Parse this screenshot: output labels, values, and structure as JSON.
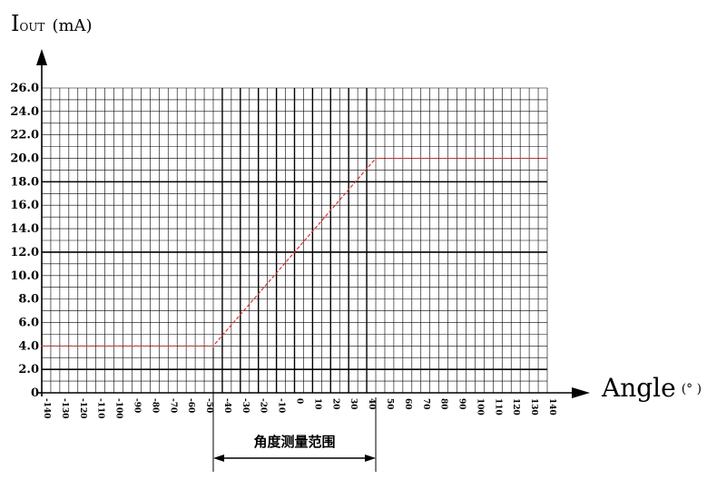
{
  "chart_data": {
    "type": "line",
    "y_title": {
      "main": "I",
      "sub": "OUT",
      "unit": "(mA)"
    },
    "x_title": {
      "main": "Angle",
      "unit": "(° )"
    },
    "x_ticks": [
      "-140",
      "-130",
      "-120",
      "-110",
      "-100",
      "-90",
      "-80",
      "-70",
      "-60",
      "-50",
      "-40",
      "-30",
      "-20",
      "-10",
      "0",
      "10",
      "20",
      "30",
      "40",
      "50",
      "60",
      "70",
      "80",
      "90",
      "100",
      "110",
      "120",
      "130",
      "140"
    ],
    "y_ticks": [
      "0",
      "2.0",
      "4.0",
      "6.0",
      "8.0",
      "10.0",
      "12.0",
      "14.0",
      "16.0",
      "18.0",
      "20.0",
      "22.0",
      "24.0",
      "26.0"
    ],
    "xlim": [
      -140,
      140
    ],
    "ylim": [
      0,
      26
    ],
    "series": [
      {
        "color": "#e03030",
        "x": [
          -140,
          -45,
          45,
          140
        ],
        "y": [
          4,
          4,
          20,
          20
        ]
      }
    ],
    "range_annotation": {
      "label": "角度测量范围",
      "from": -45,
      "to": 45
    },
    "grid": true
  }
}
